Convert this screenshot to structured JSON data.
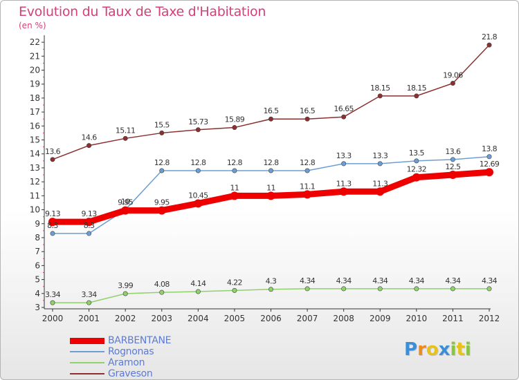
{
  "header": {
    "title": "Evolution du Taux de Taxe d'Habitation",
    "unit": "(en %)"
  },
  "logo": {
    "text": "Proxiti",
    "letters": [
      {
        "ch": "P",
        "color": "#3a8fd8"
      },
      {
        "ch": "r",
        "color": "#f08a1c"
      },
      {
        "ch": "o",
        "color": "#e8c21a"
      },
      {
        "ch": "x",
        "color": "#3a8fd8"
      },
      {
        "ch": "i",
        "color": "#88c540"
      },
      {
        "ch": "t",
        "color": "#e8c21a"
      },
      {
        "ch": "i",
        "color": "#88c540"
      }
    ]
  },
  "chart_data": {
    "type": "line",
    "title": "Evolution du Taux de Taxe d'Habitation",
    "ylabel": "(en %)",
    "xlabel": "",
    "x": [
      "2000",
      "2001",
      "2002",
      "2003",
      "2004",
      "2005",
      "2006",
      "2007",
      "2008",
      "2009",
      "2010",
      "2011",
      "2012"
    ],
    "ylim": [
      3,
      22.5
    ],
    "yticks": [
      3,
      4,
      5,
      6,
      7,
      8,
      9,
      10,
      11,
      12,
      13,
      14,
      15,
      16,
      17,
      18,
      19,
      20,
      21,
      22
    ],
    "grid": false,
    "legend_position": "bottom-left",
    "series": [
      {
        "name": "BARBENTANE",
        "color": "#ee0000",
        "emphasis": true,
        "values": [
          9.13,
          9.13,
          9.95,
          9.95,
          10.45,
          11,
          11,
          11.1,
          11.3,
          11.3,
          12.32,
          12.5,
          12.69
        ],
        "labels": [
          "9.13",
          "9.13",
          "9.95",
          "9.95",
          "10.45",
          "11",
          "11",
          "11.1",
          "11.3",
          "11.3",
          "12.32",
          "12.5",
          "12.69"
        ]
      },
      {
        "name": "Rognonas",
        "color": "#6c9ed4",
        "values": [
          8.3,
          8.3,
          10,
          12.8,
          12.8,
          12.8,
          12.8,
          12.8,
          13.3,
          13.3,
          13.5,
          13.6,
          13.8
        ],
        "labels": [
          "8.3",
          "8.3",
          "10",
          "12.8",
          "12.8",
          "12.8",
          "12.8",
          "12.8",
          "13.3",
          "13.3",
          "13.5",
          "13.6",
          "13.8"
        ]
      },
      {
        "name": "Aramon",
        "color": "#8fd16a",
        "values": [
          3.34,
          3.34,
          3.99,
          4.08,
          4.14,
          4.22,
          4.3,
          4.34,
          4.34,
          4.34,
          4.34,
          4.34,
          4.34
        ],
        "labels": [
          "3.34",
          "3.34",
          "3.99",
          "4.08",
          "4.14",
          "4.22",
          "4.3",
          "4.34",
          "4.34",
          "4.34",
          "4.34",
          "4.34",
          "4.34"
        ]
      },
      {
        "name": "Graveson",
        "color": "#8b2f2f",
        "values": [
          13.6,
          14.6,
          15.11,
          15.5,
          15.73,
          15.89,
          16.5,
          16.5,
          16.65,
          18.15,
          18.15,
          19.06,
          21.8
        ],
        "labels": [
          "13.6",
          "14.6",
          "15.11",
          "15.5",
          "15.73",
          "15.89",
          "16.5",
          "16.5",
          "16.65",
          "18.15",
          "18.15",
          "19.06",
          "21.8"
        ]
      }
    ],
    "colors": {
      "axis": "#333333",
      "tick_minor": "#d04060",
      "title": "#d43f7a",
      "legend_text": "#5b7bd5"
    }
  }
}
